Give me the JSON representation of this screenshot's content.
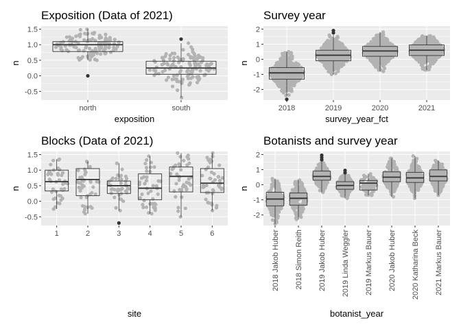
{
  "colors": {
    "panel": "#ebebeb",
    "grid": "#ffffff",
    "point": "#b3b3b3",
    "box": "#333333",
    "outlier": "#333333"
  },
  "chart_data": [
    {
      "id": "exposition",
      "type": "box+beeswarm",
      "title": "Exposition (Data of 2021)",
      "xlabel": "exposition",
      "ylabel": "n",
      "ylim": [
        -0.78,
        1.6
      ],
      "yticks": [
        "1.5",
        "1.0",
        "0.5",
        "0.0",
        "-0.5"
      ],
      "yticks_values": [
        1.5,
        1.0,
        0.5,
        0.0,
        -0.5
      ],
      "categories": [
        "north",
        "south"
      ],
      "boxes": [
        {
          "q1": 0.78,
          "median": 1.0,
          "q3": 1.1,
          "lower": 0.5,
          "upper": 1.5,
          "outliers": [
            0.0
          ],
          "n": 110,
          "spread": 0.07
        },
        {
          "q1": 0.05,
          "median": 0.25,
          "q3": 0.47,
          "lower": -0.7,
          "upper": 1.05,
          "outliers": [
            1.18
          ],
          "n": 120,
          "spread": 0.07
        }
      ]
    },
    {
      "id": "survey",
      "type": "box+beeswarm",
      "title": "Survey year",
      "xlabel": "survey_year_fct",
      "ylabel": "n",
      "ylim": [
        -2.7,
        2.2
      ],
      "yticks": [
        "2",
        "1",
        "0",
        "-1",
        "-2"
      ],
      "yticks_values": [
        2,
        1,
        0,
        -1,
        -2
      ],
      "categories": [
        "2018",
        "2019",
        "2020",
        "2021"
      ],
      "boxes": [
        {
          "q1": -1.32,
          "median": -0.9,
          "q3": -0.55,
          "lower": -2.4,
          "upper": 0.5,
          "outliers": [
            -2.65
          ],
          "n": 420,
          "spread": 0.06
        },
        {
          "q1": -0.1,
          "median": 0.27,
          "q3": 0.6,
          "lower": -1.0,
          "upper": 1.6,
          "outliers": [
            1.75,
            1.9
          ],
          "n": 480,
          "spread": 0.055
        },
        {
          "q1": 0.2,
          "median": 0.55,
          "q3": 0.85,
          "lower": -0.8,
          "upper": 1.8,
          "outliers": [],
          "n": 480,
          "spread": 0.055
        },
        {
          "q1": 0.25,
          "median": 0.6,
          "q3": 0.95,
          "lower": -0.7,
          "upper": 1.55,
          "outliers": [],
          "n": 460,
          "spread": 0.055
        }
      ]
    },
    {
      "id": "blocks",
      "type": "box+beeswarm",
      "title": "Blocks (Data of 2021)",
      "xlabel": "site",
      "ylabel": "n",
      "ylim": [
        -0.78,
        1.6
      ],
      "yticks": [
        "1.5",
        "1.0",
        "0.5",
        "0.0",
        "-0.5"
      ],
      "yticks_values": [
        1.5,
        1.0,
        0.5,
        0.0,
        -0.5
      ],
      "categories": [
        "1",
        "2",
        "3",
        "4",
        "5",
        "6"
      ],
      "boxes": [
        {
          "q1": 0.33,
          "median": 0.63,
          "q3": 1.0,
          "lower": -0.25,
          "upper": 1.35,
          "outliers": [],
          "n": 40,
          "spread": 0.1
        },
        {
          "q1": 0.18,
          "median": 0.7,
          "q3": 1.05,
          "lower": -0.4,
          "upper": 1.28,
          "outliers": [],
          "n": 40,
          "spread": 0.1
        },
        {
          "q1": 0.25,
          "median": 0.5,
          "q3": 0.65,
          "lower": -0.3,
          "upper": 1.22,
          "outliers": [
            -0.7
          ],
          "n": 38,
          "spread": 0.1
        },
        {
          "q1": 0.05,
          "median": 0.42,
          "q3": 0.88,
          "lower": -0.4,
          "upper": 1.45,
          "outliers": [],
          "n": 42,
          "spread": 0.1
        },
        {
          "q1": 0.3,
          "median": 0.8,
          "q3": 1.1,
          "lower": -0.5,
          "upper": 1.55,
          "outliers": [],
          "n": 42,
          "spread": 0.1
        },
        {
          "q1": 0.28,
          "median": 0.58,
          "q3": 1.05,
          "lower": -0.3,
          "upper": 1.55,
          "outliers": [],
          "n": 42,
          "spread": 0.1
        }
      ]
    },
    {
      "id": "botanists",
      "type": "box+beeswarm",
      "title": "Botanists and survey year",
      "xlabel": "botanist_year",
      "ylabel": "n",
      "ylim": [
        -2.7,
        2.2
      ],
      "yticks": [
        "2",
        "1",
        "0",
        "-1",
        "-2"
      ],
      "yticks_values": [
        2,
        1,
        0,
        -1,
        -2
      ],
      "categories": [
        "2018 Jakob Huber",
        "2018 Simon Reith",
        "2019 Jakob Huber",
        "2019 Linda Weggler",
        "2019 Markus Bauer",
        "2020 Jakob Huber",
        "2020 Katharina Beck",
        "2021 Markus Bauer"
      ],
      "boxes": [
        {
          "q1": -1.4,
          "median": -0.95,
          "q3": -0.5,
          "lower": -2.6,
          "upper": 0.4,
          "outliers": [],
          "n": 220,
          "spread": 0.09
        },
        {
          "q1": -1.35,
          "median": -0.9,
          "q3": -0.55,
          "lower": -2.3,
          "upper": 0.3,
          "outliers": [],
          "n": 200,
          "spread": 0.09
        },
        {
          "q1": 0.3,
          "median": 0.55,
          "q3": 0.9,
          "lower": -0.5,
          "upper": 1.5,
          "outliers": [
            1.65,
            1.8,
            1.95
          ],
          "n": 200,
          "spread": 0.085
        },
        {
          "q1": -0.3,
          "median": -0.05,
          "q3": 0.2,
          "lower": -0.9,
          "upper": 0.7,
          "outliers": [
            0.8,
            0.95
          ],
          "n": 160,
          "spread": 0.085
        },
        {
          "q1": -0.35,
          "median": 0.1,
          "q3": 0.28,
          "lower": -0.7,
          "upper": 0.72,
          "outliers": [],
          "n": 70,
          "spread": 0.085
        },
        {
          "q1": 0.2,
          "median": 0.5,
          "q3": 0.85,
          "lower": -0.8,
          "upper": 1.75,
          "outliers": [],
          "n": 220,
          "spread": 0.085
        },
        {
          "q1": 0.15,
          "median": 0.45,
          "q3": 0.82,
          "lower": -0.9,
          "upper": 1.9,
          "outliers": [],
          "n": 220,
          "spread": 0.085
        },
        {
          "q1": 0.25,
          "median": 0.55,
          "q3": 0.98,
          "lower": -0.7,
          "upper": 1.6,
          "outliers": [],
          "n": 220,
          "spread": 0.085
        }
      ]
    }
  ]
}
